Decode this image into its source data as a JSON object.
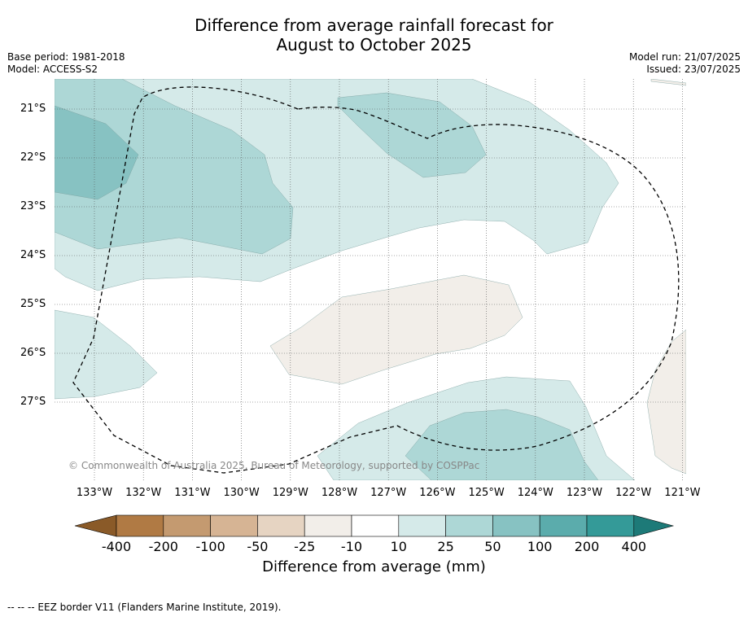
{
  "title": {
    "line1": "Difference from average rainfall forecast for",
    "line2": "August to October 2025"
  },
  "meta_left": {
    "base_period": "Base period: 1981-2018",
    "model": "Model: ACCESS-S2"
  },
  "meta_right": {
    "model_run": "Model run: 21/07/2025",
    "issued": "Issued: 23/07/2025"
  },
  "latitudes": [
    "21°S",
    "22°S",
    "23°S",
    "24°S",
    "25°S",
    "26°S",
    "27°S"
  ],
  "longitudes": [
    "133°W",
    "132°W",
    "131°W",
    "130°W",
    "129°W",
    "128°W",
    "127°W",
    "126°W",
    "125°W",
    "124°W",
    "123°W",
    "122°W",
    "121°W"
  ],
  "copyright": "© Commonwealth of Australia 2025, Bureau of Meteorology, supported by COSPPac",
  "colorbar": {
    "ticks": [
      "-400",
      "-200",
      "-100",
      "-50",
      "-25",
      "-10",
      "10",
      "25",
      "50",
      "100",
      "200",
      "400"
    ],
    "colors": [
      "#8a5a28",
      "#b07a44",
      "#c49a70",
      "#d6b494",
      "#e6d4c2",
      "#f2eee9",
      "#ffffff",
      "#d5eae9",
      "#add7d6",
      "#87c2c2",
      "#5bacac",
      "#349a98",
      "#1d7a78"
    ],
    "label": "Difference from average (mm)"
  },
  "footer": "--  --  -- EEZ border V11 (Flanders Marine Institute, 2019)."
}
